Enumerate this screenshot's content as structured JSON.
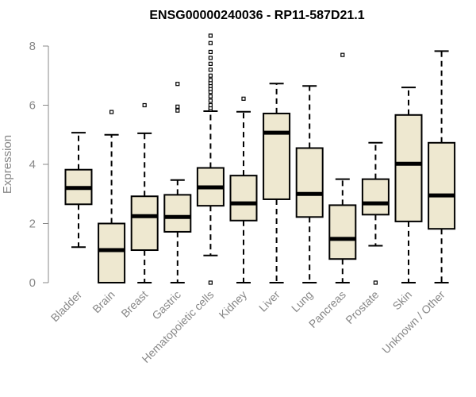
{
  "chart_data": {
    "type": "box",
    "title": "ENSG00000240036 - RP11-587D21.1",
    "ylabel": "Expression",
    "xlabel": "",
    "ylim": [
      0,
      8.4
    ],
    "yticks": [
      0,
      2,
      4,
      6,
      8
    ],
    "grid": false,
    "box_fill": "#EEE8D0",
    "categories": [
      "Bladder",
      "Brain",
      "Breast",
      "Gastric",
      "Hematopoietic cells",
      "Kidney",
      "Liver",
      "Lung",
      "Pancreas",
      "Prostate",
      "Skin",
      "Unknown / Other"
    ],
    "boxes": [
      {
        "min": 1.2,
        "q1": 2.65,
        "median": 3.2,
        "q3": 3.82,
        "max": 5.07,
        "outliers": []
      },
      {
        "min": 0.0,
        "q1": 0.0,
        "median": 1.1,
        "q3": 2.0,
        "max": 5.0,
        "outliers": [
          5.77
        ]
      },
      {
        "min": 0.0,
        "q1": 1.1,
        "median": 2.25,
        "q3": 2.92,
        "max": 5.05,
        "outliers": [
          6.0
        ]
      },
      {
        "min": 0.0,
        "q1": 1.72,
        "median": 2.22,
        "q3": 2.97,
        "max": 3.47,
        "outliers": [
          5.82,
          5.95,
          6.72
        ]
      },
      {
        "min": 0.92,
        "q1": 2.6,
        "median": 3.22,
        "q3": 3.88,
        "max": 5.8,
        "outliers": [
          0.0,
          5.85,
          5.9,
          6.0,
          6.15,
          6.3,
          6.45,
          6.55,
          6.65,
          6.75,
          6.85,
          7.0,
          7.2,
          7.4,
          7.6,
          7.8,
          8.1,
          8.35
        ]
      },
      {
        "min": 0.0,
        "q1": 2.1,
        "median": 2.68,
        "q3": 3.62,
        "max": 5.78,
        "outliers": [
          6.22
        ]
      },
      {
        "min": 0.0,
        "q1": 2.82,
        "median": 5.07,
        "q3": 5.72,
        "max": 6.73,
        "outliers": []
      },
      {
        "min": 0.0,
        "q1": 2.22,
        "median": 3.0,
        "q3": 4.55,
        "max": 6.65,
        "outliers": []
      },
      {
        "min": 0.0,
        "q1": 0.8,
        "median": 1.48,
        "q3": 2.62,
        "max": 3.5,
        "outliers": [
          7.7
        ]
      },
      {
        "min": 1.25,
        "q1": 2.3,
        "median": 2.68,
        "q3": 3.5,
        "max": 4.73,
        "outliers": [
          0.0
        ]
      },
      {
        "min": 0.0,
        "q1": 2.07,
        "median": 4.02,
        "q3": 5.67,
        "max": 6.6,
        "outliers": []
      },
      {
        "min": 0.0,
        "q1": 1.82,
        "median": 2.95,
        "q3": 4.73,
        "max": 7.83,
        "outliers": []
      }
    ]
  }
}
